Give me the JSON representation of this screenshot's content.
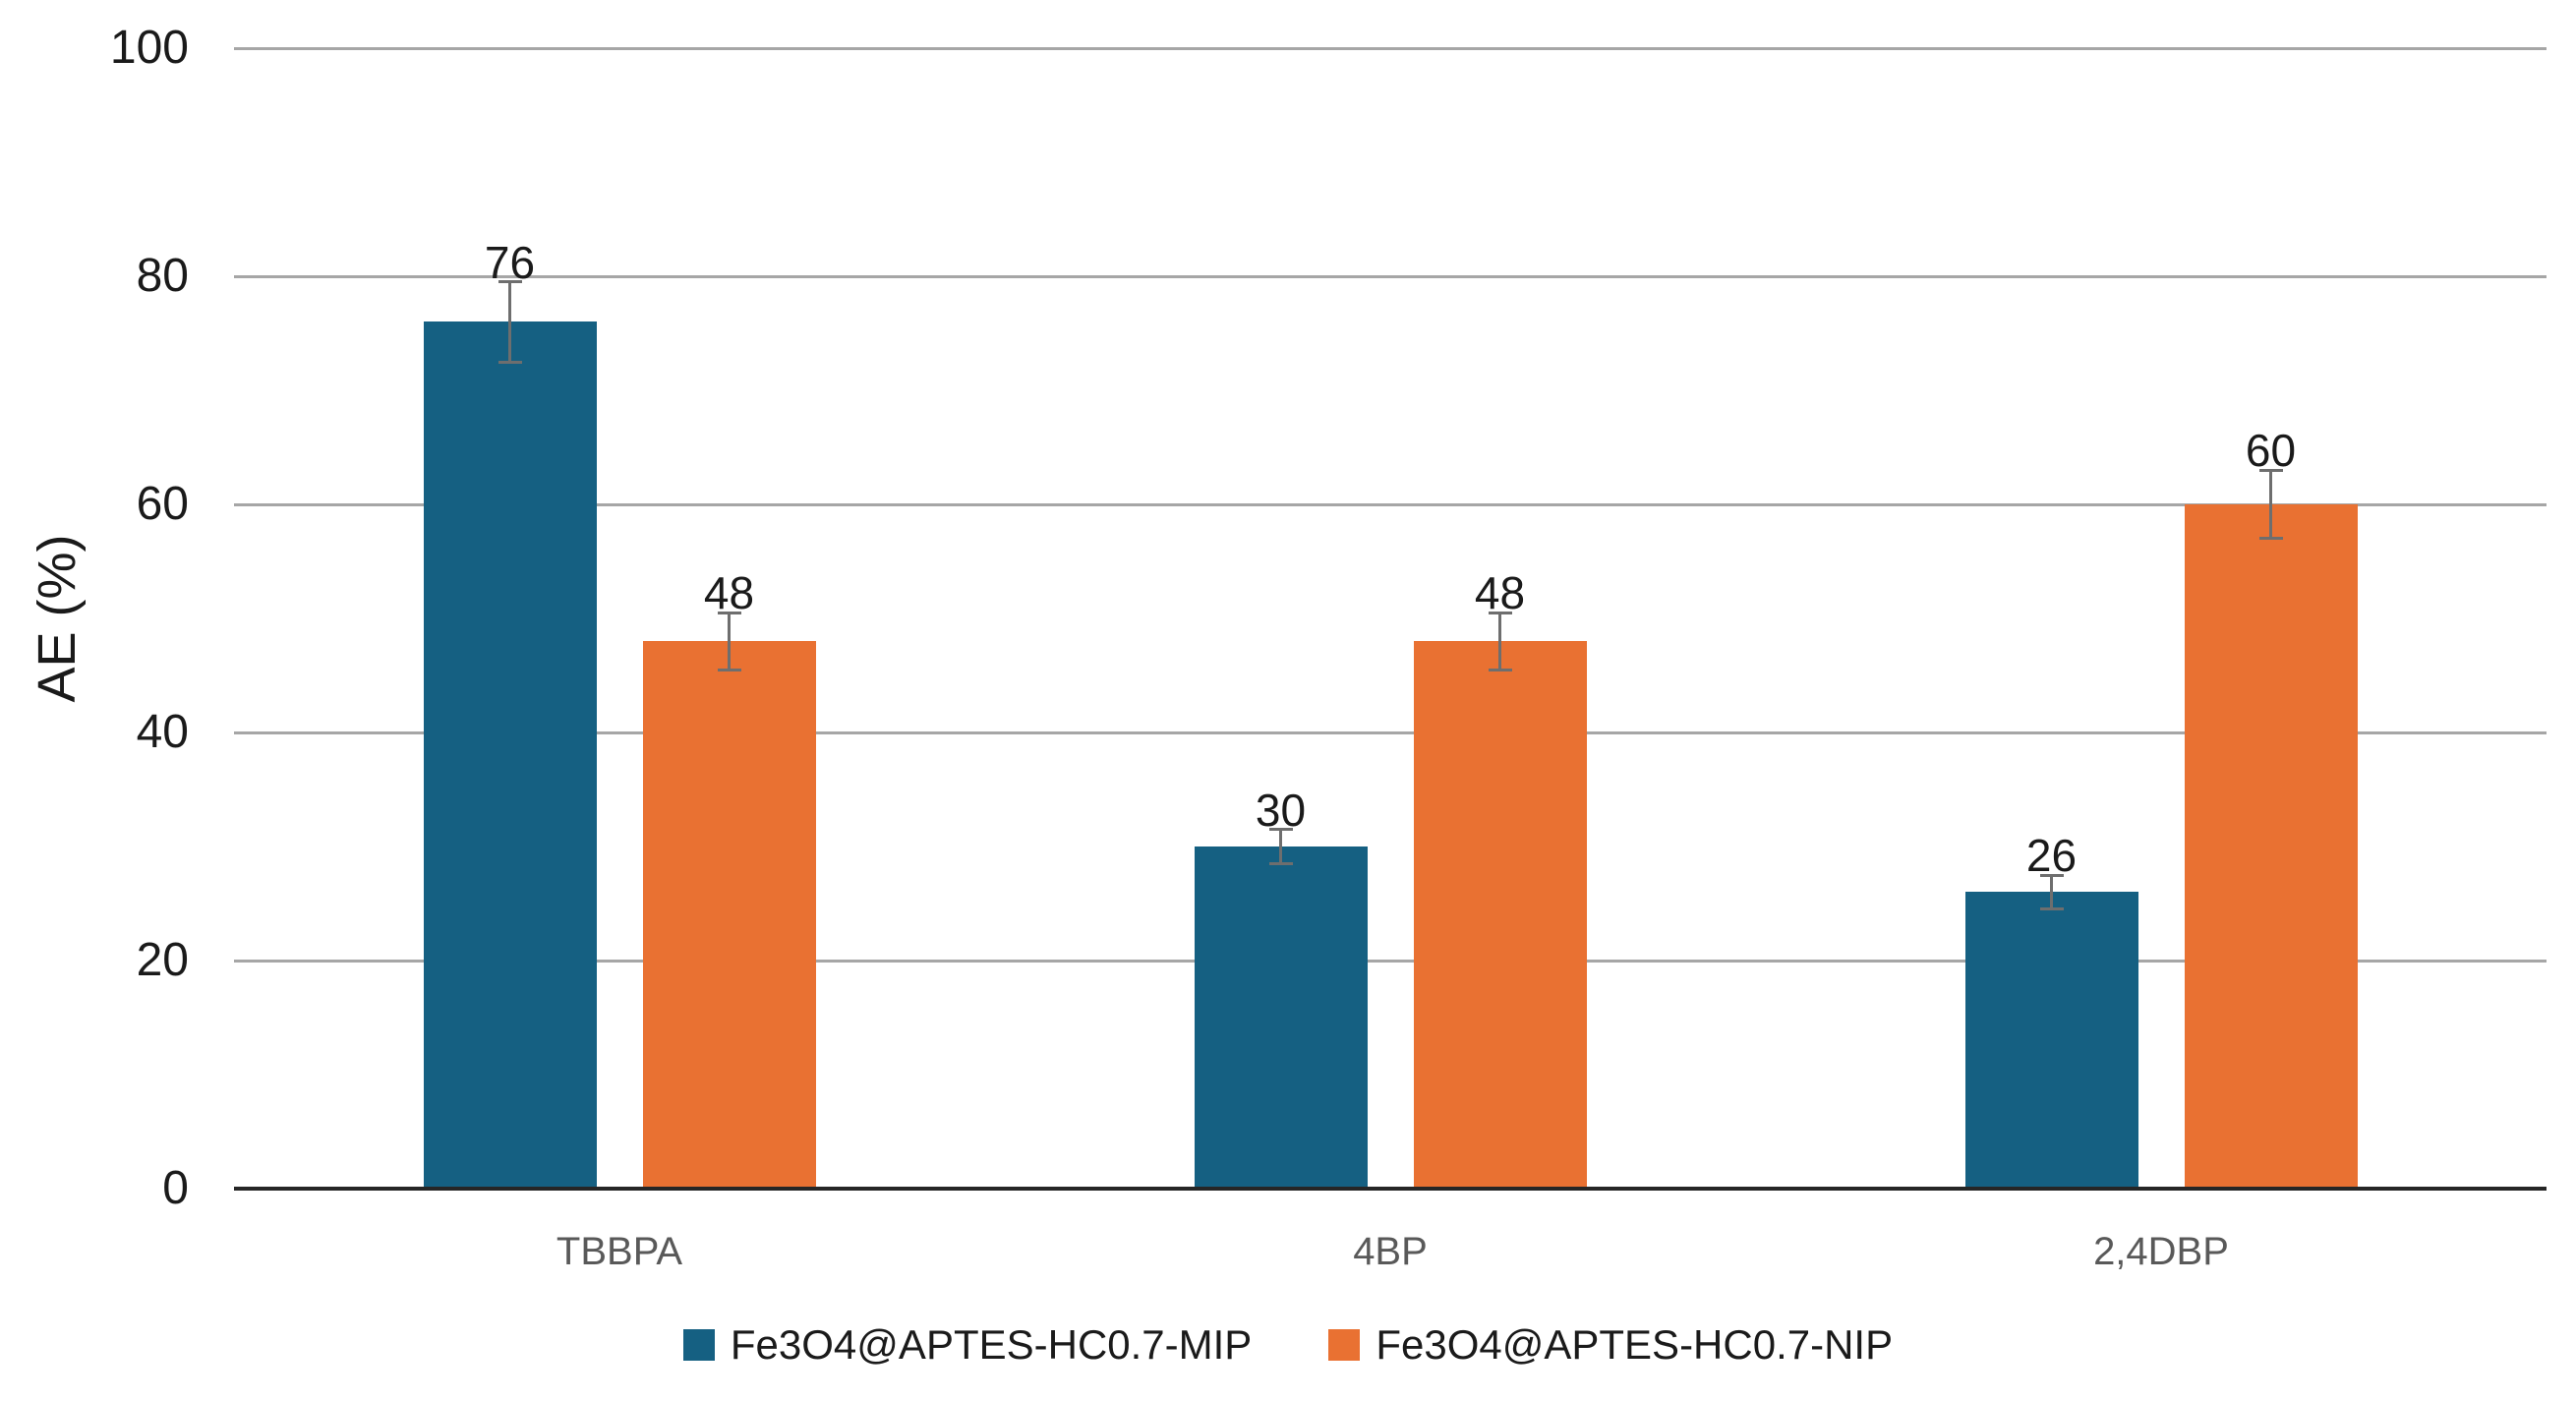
{
  "chart_data": {
    "type": "bar",
    "title": "",
    "categories": [
      "TBBPA",
      "4BP",
      "2,4DBP"
    ],
    "series": [
      {
        "name": "Fe3O4@APTES-HC0.7-MIP",
        "color": "#156082",
        "values": [
          76,
          30,
          26
        ],
        "errors": [
          3.5,
          1.5,
          1.5
        ]
      },
      {
        "name": "Fe3O4@APTES-HC0.7-NIP",
        "color": "#E97132",
        "values": [
          48,
          48,
          60
        ],
        "errors": [
          2.5,
          2.5,
          3
        ]
      }
    ],
    "show_data_labels": true,
    "error_bars": true,
    "xlabel": "",
    "ylabel": "AE (%)",
    "ylim": [
      0,
      100
    ],
    "yticks": [
      0,
      20,
      40,
      60,
      80,
      100
    ],
    "grid": "horizontal",
    "legend_position": "bottom",
    "colors": {
      "gridline": "#A6A6A6",
      "axis_line": "#262626",
      "error_bar": "#6E6E6E",
      "tick_label": "#1A1A1A",
      "data_label": "#1A1A1A",
      "category_label": "#595959",
      "legend_text": "#1A1A1A",
      "background": "#FFFFFF"
    }
  }
}
